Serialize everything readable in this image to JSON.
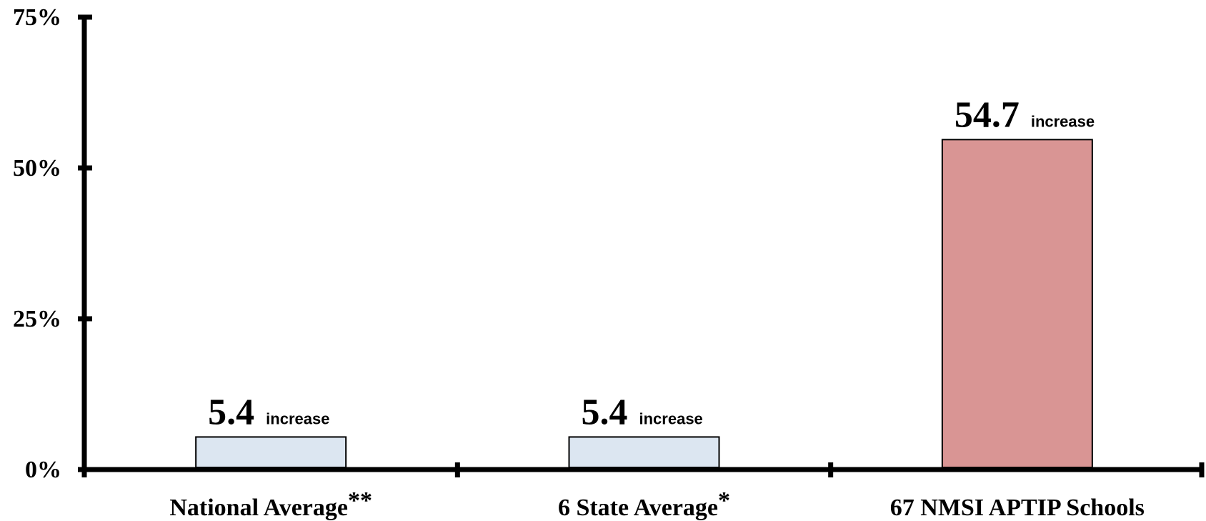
{
  "chart_data": {
    "type": "bar",
    "title": "",
    "xlabel": "",
    "ylabel": "",
    "categories": [
      "National Average",
      "6 State Average",
      "67 NMSI APTIP Schools"
    ],
    "category_marks": [
      "**",
      "*",
      ""
    ],
    "values": [
      5.4,
      5.4,
      54.7
    ],
    "value_labels": [
      "5.4",
      "5.4",
      "54.7"
    ],
    "value_suffix": "increase",
    "bar_colors": [
      "#dce6f1",
      "#dce6f1",
      "#d99594"
    ],
    "ylim": [
      0,
      75
    ],
    "yticks": [
      0,
      25,
      50,
      75
    ],
    "ytick_labels": [
      "0%",
      "25%",
      "50%",
      "75%"
    ],
    "grid": false,
    "legend": "none"
  }
}
